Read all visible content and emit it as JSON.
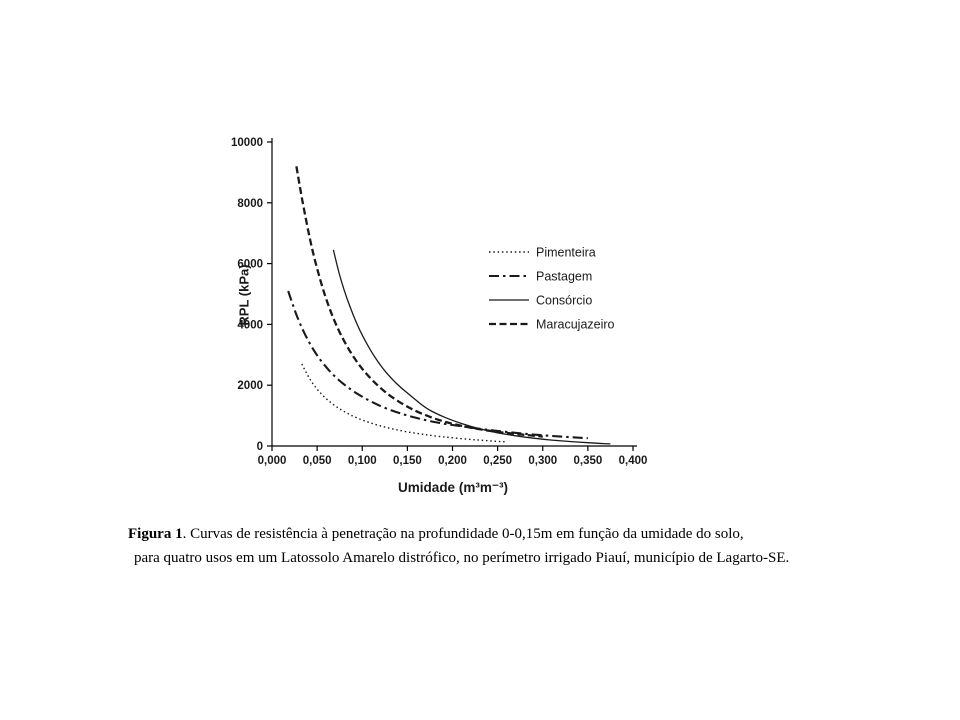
{
  "figure": {
    "caption": {
      "label": "Figura 1",
      "line1_rest": ". Curvas de resistência à penetração na profundidade 0-0,15m em função da umidade do solo,",
      "line2": "para quatro usos em um Latossolo Amarelo distrófico, no perímetro irrigado Piauí, município de Lagarto-SE."
    }
  },
  "chart_data": {
    "type": "line",
    "title": "",
    "xlabel": "Umidade (m³m⁻³)",
    "ylabel": "RPL (kPa)",
    "xlim": [
      0,
      0.4
    ],
    "ylim": [
      0,
      10000
    ],
    "x_ticks": [
      0,
      0.05,
      0.1,
      0.15,
      0.2,
      0.25,
      0.3,
      0.35,
      0.4
    ],
    "x_tick_labels": [
      "0,000",
      "0,050",
      "0,100",
      "0,150",
      "0,200",
      "0,250",
      "0,300",
      "0,350",
      "0,400"
    ],
    "y_ticks": [
      0,
      2000,
      4000,
      6000,
      8000,
      10000
    ],
    "y_tick_labels": [
      "0",
      "2000",
      "4000",
      "6000",
      "8000",
      "10000"
    ],
    "grid": false,
    "legend_position": "inside-upper-right",
    "axis_color": "#000000",
    "series": [
      {
        "name": "Pimenteira",
        "line_style": "dotted",
        "stroke_width": 1.4,
        "color": "#1a1a1a",
        "points": [
          [
            0.033,
            2700
          ],
          [
            0.038,
            2400
          ],
          [
            0.044,
            2100
          ],
          [
            0.051,
            1830
          ],
          [
            0.059,
            1580
          ],
          [
            0.068,
            1360
          ],
          [
            0.078,
            1160
          ],
          [
            0.089,
            990
          ],
          [
            0.101,
            840
          ],
          [
            0.114,
            710
          ],
          [
            0.128,
            600
          ],
          [
            0.143,
            500
          ],
          [
            0.16,
            415
          ],
          [
            0.178,
            340
          ],
          [
            0.198,
            275
          ],
          [
            0.22,
            215
          ],
          [
            0.24,
            170
          ],
          [
            0.26,
            135
          ]
        ]
      },
      {
        "name": "Pastagem",
        "line_style": "dashdot",
        "stroke_width": 2.1,
        "color": "#1a1a1a",
        "points": [
          [
            0.018,
            5100
          ],
          [
            0.024,
            4550
          ],
          [
            0.031,
            4020
          ],
          [
            0.039,
            3520
          ],
          [
            0.048,
            3060
          ],
          [
            0.058,
            2660
          ],
          [
            0.068,
            2330
          ],
          [
            0.079,
            2040
          ],
          [
            0.091,
            1780
          ],
          [
            0.104,
            1550
          ],
          [
            0.118,
            1340
          ],
          [
            0.134,
            1150
          ],
          [
            0.15,
            1000
          ],
          [
            0.17,
            850
          ],
          [
            0.19,
            730
          ],
          [
            0.21,
            650
          ],
          [
            0.23,
            565
          ],
          [
            0.25,
            495
          ],
          [
            0.27,
            430
          ],
          [
            0.29,
            375
          ],
          [
            0.31,
            330
          ],
          [
            0.33,
            290
          ],
          [
            0.35,
            255
          ]
        ]
      },
      {
        "name": "Consórcio",
        "line_style": "solid",
        "stroke_width": 1.3,
        "color": "#1a1a1a",
        "points": [
          [
            0.068,
            6450
          ],
          [
            0.072,
            5950
          ],
          [
            0.077,
            5400
          ],
          [
            0.083,
            4850
          ],
          [
            0.09,
            4300
          ],
          [
            0.097,
            3820
          ],
          [
            0.105,
            3360
          ],
          [
            0.113,
            2960
          ],
          [
            0.122,
            2580
          ],
          [
            0.132,
            2230
          ],
          [
            0.143,
            1910
          ],
          [
            0.155,
            1620
          ],
          [
            0.17,
            1250
          ],
          [
            0.185,
            1020
          ],
          [
            0.2,
            840
          ],
          [
            0.22,
            640
          ],
          [
            0.24,
            490
          ],
          [
            0.26,
            380
          ],
          [
            0.28,
            290
          ],
          [
            0.3,
            220
          ],
          [
            0.32,
            170
          ],
          [
            0.34,
            125
          ],
          [
            0.36,
            90
          ],
          [
            0.375,
            70
          ]
        ]
      },
      {
        "name": "Maracujazeiro",
        "line_style": "dashed",
        "stroke_width": 2.3,
        "color": "#1a1a1a",
        "points": [
          [
            0.027,
            9200
          ],
          [
            0.031,
            8500
          ],
          [
            0.036,
            7700
          ],
          [
            0.042,
            6800
          ],
          [
            0.048,
            6050
          ],
          [
            0.055,
            5300
          ],
          [
            0.062,
            4650
          ],
          [
            0.07,
            4050
          ],
          [
            0.078,
            3550
          ],
          [
            0.087,
            3080
          ],
          [
            0.096,
            2680
          ],
          [
            0.106,
            2320
          ],
          [
            0.118,
            1960
          ],
          [
            0.132,
            1620
          ],
          [
            0.148,
            1320
          ],
          [
            0.165,
            1070
          ],
          [
            0.185,
            850
          ],
          [
            0.205,
            690
          ],
          [
            0.225,
            570
          ],
          [
            0.25,
            460
          ],
          [
            0.275,
            380
          ],
          [
            0.3,
            310
          ]
        ]
      }
    ]
  }
}
